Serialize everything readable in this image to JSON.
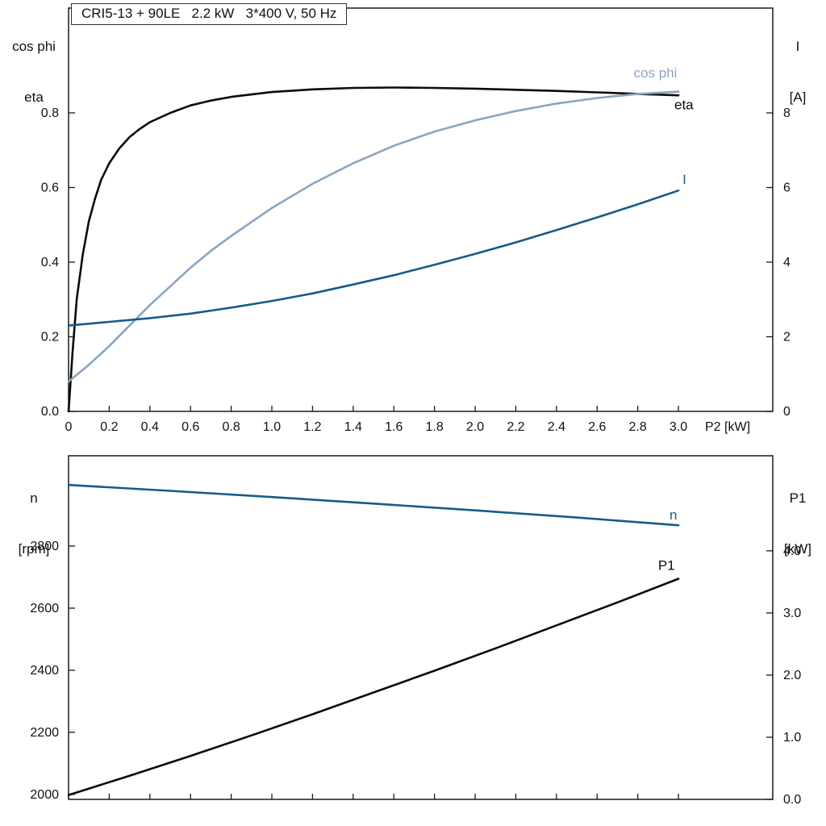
{
  "title_box": "CRI5-13 + 90LE   2.2 kW   3*400 V, 50 Hz",
  "labels": {
    "top_left": [
      "cos phi",
      "eta"
    ],
    "top_right": [
      "I",
      "[A]"
    ],
    "x_axis": "P2 [kW]",
    "bottom_left": [
      "n",
      "[rpm]"
    ],
    "bottom_right": [
      "P1",
      "[kW]"
    ]
  },
  "colors": {
    "black": "#0b0b0b",
    "dark_blue": "#175b88",
    "light_blue": "#8aa5c0",
    "frame": "#1a1a1a",
    "background": "#ffffff"
  },
  "chart_data": [
    {
      "type": "line",
      "title": "CRI5-13 + 90LE  2.2 kW  3*400 V, 50 Hz",
      "xlabel": "P2 [kW]",
      "grid": false,
      "legend_position": "labels-at-curve-ends",
      "x_axis": {
        "min": 0,
        "max": 3.464,
        "tick_values": [
          0,
          0.2,
          0.4,
          0.6,
          0.8,
          1.0,
          1.2,
          1.4,
          1.6,
          1.8,
          2.0,
          2.2,
          2.4,
          2.6,
          2.8,
          3.0
        ],
        "tick_labels": [
          "0",
          "0.2",
          "0.4",
          "0.6",
          "0.8",
          "1.0",
          "1.2",
          "1.4",
          "1.6",
          "1.8",
          "2.0",
          "2.2",
          "2.4",
          "2.6",
          "2.8",
          "3.0"
        ]
      },
      "left_axis": {
        "title": "cos phi / eta",
        "min": 0,
        "max": 1.081,
        "tick_values": [
          0,
          0.2,
          0.4,
          0.6,
          0.8
        ],
        "tick_labels": [
          "0.0",
          "0.2",
          "0.4",
          "0.6",
          "0.8"
        ]
      },
      "right_axis": {
        "title": "I [A]",
        "min": 0,
        "max": 10.81,
        "tick_values": [
          0,
          2,
          4,
          6,
          8
        ],
        "tick_labels": [
          "0",
          "2",
          "4",
          "6",
          "8"
        ]
      },
      "series": [
        {
          "name": "eta",
          "axis": "left",
          "color_key": "black",
          "label": "eta",
          "label_at": {
            "x": 2.98,
            "v": 0.81
          },
          "x": [
            0,
            0.02,
            0.04,
            0.07,
            0.1,
            0.13,
            0.16,
            0.2,
            0.25,
            0.3,
            0.35,
            0.4,
            0.5,
            0.6,
            0.7,
            0.8,
            1.0,
            1.2,
            1.4,
            1.6,
            1.8,
            2.0,
            2.2,
            2.4,
            2.6,
            2.8,
            3.0
          ],
          "y": [
            0,
            0.16,
            0.3,
            0.42,
            0.51,
            0.57,
            0.62,
            0.665,
            0.705,
            0.735,
            0.757,
            0.775,
            0.8,
            0.82,
            0.833,
            0.843,
            0.856,
            0.863,
            0.867,
            0.868,
            0.867,
            0.865,
            0.862,
            0.859,
            0.855,
            0.851,
            0.847
          ]
        },
        {
          "name": "cos-phi",
          "axis": "left",
          "color_key": "light_blue",
          "label": "cos phi",
          "label_at": {
            "x": 2.78,
            "v": 0.895
          },
          "x": [
            0,
            0.1,
            0.2,
            0.3,
            0.4,
            0.5,
            0.6,
            0.7,
            0.8,
            1.0,
            1.2,
            1.4,
            1.6,
            1.8,
            2.0,
            2.2,
            2.4,
            2.6,
            2.8,
            3.0
          ],
          "y": [
            0.08,
            0.125,
            0.175,
            0.23,
            0.285,
            0.335,
            0.385,
            0.43,
            0.47,
            0.545,
            0.61,
            0.665,
            0.712,
            0.75,
            0.78,
            0.805,
            0.825,
            0.84,
            0.851,
            0.857
          ]
        },
        {
          "name": "current",
          "axis": "right",
          "color_key": "dark_blue",
          "label": "I",
          "label_at": {
            "x": 3.02,
            "v": 6.1
          },
          "x": [
            0,
            0.2,
            0.4,
            0.6,
            0.8,
            1.0,
            1.2,
            1.4,
            1.6,
            1.8,
            2.0,
            2.2,
            2.4,
            2.6,
            2.8,
            3.0
          ],
          "y": [
            2.3,
            2.4,
            2.5,
            2.62,
            2.78,
            2.96,
            3.16,
            3.4,
            3.65,
            3.93,
            4.22,
            4.53,
            4.86,
            5.2,
            5.55,
            5.92
          ]
        }
      ]
    },
    {
      "type": "line",
      "title": "",
      "xlabel": "",
      "grid": false,
      "legend_position": "labels-at-curve-ends",
      "x_axis": {
        "min": 0,
        "max": 3.464,
        "tick_values": [
          0,
          0.2,
          0.4,
          0.6,
          0.8,
          1.0,
          1.2,
          1.4,
          1.6,
          1.8,
          2.0,
          2.2,
          2.4,
          2.6,
          2.8,
          3.0
        ],
        "tick_labels": []
      },
      "left_axis": {
        "title": "n [rpm]",
        "min": 1984,
        "max": 3091,
        "tick_values": [
          2000,
          2200,
          2400,
          2600,
          2800
        ],
        "tick_labels": [
          "2000",
          "2200",
          "2400",
          "2600",
          "2800"
        ]
      },
      "right_axis": {
        "title": "P1 [kW]",
        "min": 0,
        "max": 5.53,
        "tick_values": [
          0,
          1,
          2,
          3,
          4
        ],
        "tick_labels": [
          "0.0",
          "1.0",
          "2.0",
          "3.0",
          "4.0"
        ]
      },
      "series": [
        {
          "name": "speed",
          "axis": "left",
          "color_key": "dark_blue",
          "label": "n",
          "label_at": {
            "x": 2.956,
            "v": 2886
          },
          "x": [
            0,
            0.5,
            1.0,
            1.5,
            2.0,
            2.5,
            3.0
          ],
          "y": [
            2997,
            2978,
            2958,
            2937,
            2915,
            2892,
            2867
          ]
        },
        {
          "name": "p1",
          "axis": "right",
          "color_key": "black",
          "label": "P1",
          "label_at": {
            "x": 2.9,
            "v": 3.69
          },
          "x": [
            0,
            0.3,
            0.6,
            0.9,
            1.2,
            1.5,
            1.8,
            2.1,
            2.4,
            2.7,
            3.0
          ],
          "y": [
            0.07,
            0.38,
            0.7,
            1.03,
            1.37,
            1.72,
            2.07,
            2.43,
            2.8,
            3.17,
            3.55
          ]
        }
      ]
    }
  ]
}
